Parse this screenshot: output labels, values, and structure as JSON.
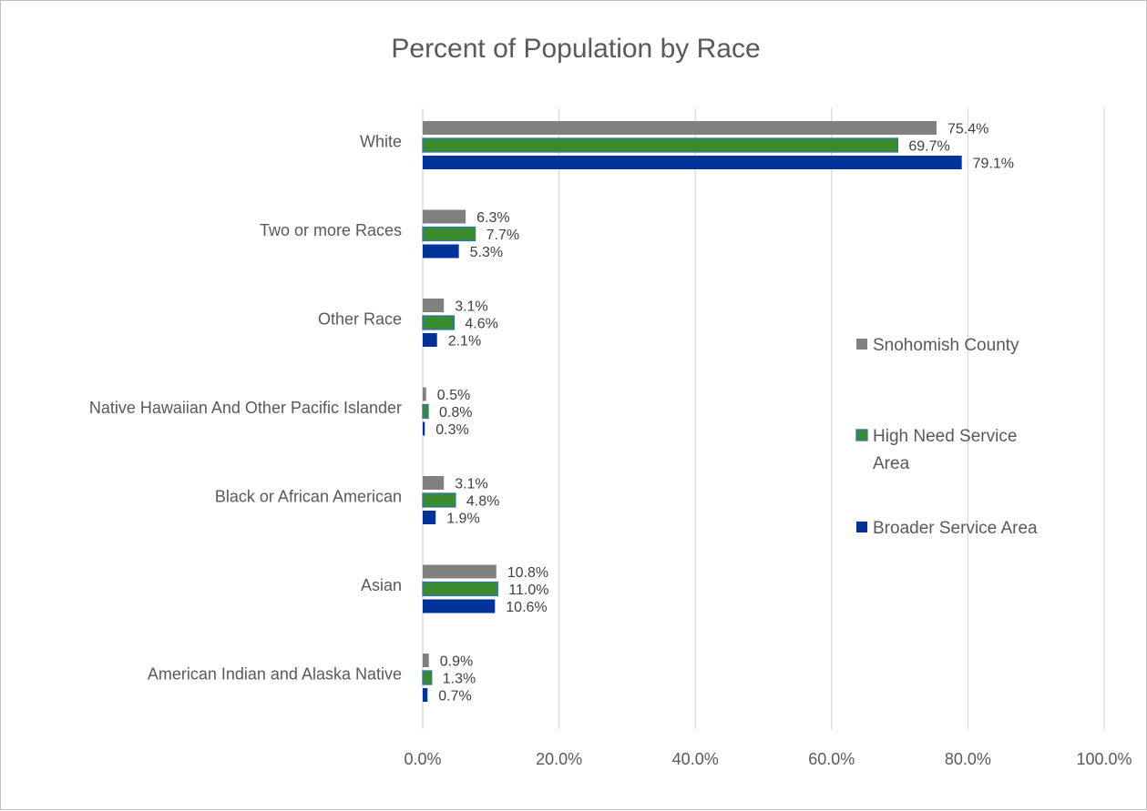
{
  "chart_data": {
    "type": "bar",
    "orientation": "horizontal",
    "title": "Percent of Population by Race",
    "xlabel": "",
    "ylabel": "",
    "xlim": [
      0,
      100
    ],
    "x_ticks": [
      "0.0%",
      "20.0%",
      "40.0%",
      "60.0%",
      "80.0%",
      "100.0%"
    ],
    "x_tick_values": [
      0,
      20,
      40,
      60,
      80,
      100
    ],
    "grid": "vertical",
    "legend_position": "right",
    "categories": [
      "White",
      "Two or more Races",
      "Other Race",
      "Native Hawaiian And Other Pacific Islander",
      "Black or African American",
      "Asian",
      "American Indian and Alaska Native"
    ],
    "series": [
      {
        "name": "Snohomish County",
        "legend_label_lines": [
          "Snohomish County"
        ],
        "color": "#808080",
        "values": [
          75.4,
          6.3,
          3.1,
          0.5,
          3.1,
          10.8,
          0.9
        ],
        "labels": [
          "75.4%",
          "6.3%",
          "3.1%",
          "0.5%",
          "3.1%",
          "10.8%",
          "0.9%"
        ]
      },
      {
        "name": "High Need Service Area",
        "legend_label_lines": [
          "High Need Service",
          "Area"
        ],
        "color": "#3a8a2e",
        "border": "#2e75b6",
        "values": [
          69.7,
          7.7,
          4.6,
          0.8,
          4.8,
          11.0,
          1.3
        ],
        "labels": [
          "69.7%",
          "7.7%",
          "4.6%",
          "0.8%",
          "4.8%",
          "11.0%",
          "1.3%"
        ]
      },
      {
        "name": "Broader Service Area",
        "legend_label_lines": [
          "Broader Service Area"
        ],
        "color": "#003399",
        "values": [
          79.1,
          5.3,
          2.1,
          0.3,
          1.9,
          10.6,
          0.7
        ],
        "labels": [
          "79.1%",
          "5.3%",
          "2.1%",
          "0.3%",
          "1.9%",
          "10.6%",
          "0.7%"
        ]
      }
    ]
  }
}
